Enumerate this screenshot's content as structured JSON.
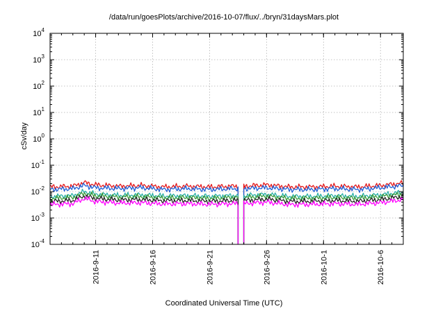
{
  "chart_data": {
    "type": "line",
    "title": "/data/run/goesPlots/archive/2016-10-07/flux/../bryn/31daysMars.plot",
    "xlabel": "Coordinated Universal Time (UTC)",
    "ylabel": "cSv/day",
    "y_scale": "log",
    "ylim": [
      0.0001,
      10000
    ],
    "xlim": [
      "2016-09-07",
      "2016-10-08"
    ],
    "grid": true,
    "legend": "none",
    "y_ticks": [
      {
        "base": "10",
        "exp": "-4"
      },
      {
        "base": "10",
        "exp": "-3"
      },
      {
        "base": "10",
        "exp": "-2"
      },
      {
        "base": "10",
        "exp": "-1"
      },
      {
        "base": "10",
        "exp": "0"
      },
      {
        "base": "10",
        "exp": "1"
      },
      {
        "base": "10",
        "exp": "2"
      },
      {
        "base": "10",
        "exp": "3"
      },
      {
        "base": "10",
        "exp": "4"
      }
    ],
    "x_ticks": [
      "2016-9-11",
      "2016-9-16",
      "2016-9-21",
      "2016-9-26",
      "2016-10-1",
      "2016-10-6"
    ],
    "data_gap": [
      "2016-09-23T12:00",
      "2016-09-24T00:00"
    ],
    "series": [
      {
        "color": "#e41a1c",
        "x": [
          "2016-09-07",
          "2016-09-09",
          "2016-09-10",
          "2016-09-11",
          "2016-09-13",
          "2016-09-15",
          "2016-09-17",
          "2016-09-19",
          "2016-09-21",
          "2016-09-23",
          "2016-09-24",
          "2016-09-26",
          "2016-09-28",
          "2016-09-30",
          "2016-10-02",
          "2016-10-04",
          "2016-10-06",
          "2016-10-08"
        ],
        "values": [
          0.015,
          0.016,
          0.022,
          0.018,
          0.016,
          0.017,
          0.015,
          0.016,
          0.015,
          0.016,
          0.016,
          0.018,
          0.015,
          0.015,
          0.016,
          0.015,
          0.017,
          0.021
        ]
      },
      {
        "color": "#1f5fd6",
        "x": [
          "2016-09-07",
          "2016-09-09",
          "2016-09-10",
          "2016-09-11",
          "2016-09-13",
          "2016-09-15",
          "2016-09-17",
          "2016-09-19",
          "2016-09-21",
          "2016-09-23",
          "2016-09-24",
          "2016-09-26",
          "2016-09-28",
          "2016-09-30",
          "2016-10-02",
          "2016-10-04",
          "2016-10-06",
          "2016-10-08"
        ],
        "values": [
          0.012,
          0.013,
          0.017,
          0.014,
          0.013,
          0.014,
          0.012,
          0.013,
          0.012,
          0.013,
          0.013,
          0.014,
          0.012,
          0.012,
          0.013,
          0.012,
          0.014,
          0.017
        ]
      },
      {
        "color": "#2ab0a8",
        "x": [
          "2016-09-07",
          "2016-09-09",
          "2016-09-10",
          "2016-09-11",
          "2016-09-13",
          "2016-09-15",
          "2016-09-17",
          "2016-09-19",
          "2016-09-21",
          "2016-09-23",
          "2016-09-24",
          "2016-09-26",
          "2016-09-28",
          "2016-09-30",
          "2016-10-02",
          "2016-10-04",
          "2016-10-06",
          "2016-10-08"
        ],
        "values": [
          0.0065,
          0.007,
          0.01,
          0.008,
          0.0072,
          0.0075,
          0.0068,
          0.007,
          0.0066,
          0.007,
          0.007,
          0.0078,
          0.0065,
          0.0066,
          0.007,
          0.0066,
          0.0075,
          0.0095
        ]
      },
      {
        "color": "#3a9a3a",
        "x": [
          "2016-09-07",
          "2016-09-09",
          "2016-09-10",
          "2016-09-11",
          "2016-09-13",
          "2016-09-15",
          "2016-09-17",
          "2016-09-19",
          "2016-09-21",
          "2016-09-23",
          "2016-09-24",
          "2016-09-26",
          "2016-09-28",
          "2016-09-30",
          "2016-10-02",
          "2016-10-04",
          "2016-10-06",
          "2016-10-08"
        ],
        "values": [
          0.0055,
          0.006,
          0.0085,
          0.007,
          0.0062,
          0.0065,
          0.0058,
          0.006,
          0.0056,
          0.006,
          0.006,
          0.0068,
          0.0055,
          0.0056,
          0.006,
          0.0056,
          0.0065,
          0.0082
        ]
      },
      {
        "color": "#222222",
        "x": [
          "2016-09-07",
          "2016-09-09",
          "2016-09-10",
          "2016-09-11",
          "2016-09-13",
          "2016-09-15",
          "2016-09-17",
          "2016-09-19",
          "2016-09-21",
          "2016-09-23",
          "2016-09-24",
          "2016-09-26",
          "2016-09-28",
          "2016-09-30",
          "2016-10-02",
          "2016-10-04",
          "2016-10-06",
          "2016-10-08"
        ],
        "values": [
          0.0042,
          0.0046,
          0.0068,
          0.0055,
          0.0048,
          0.005,
          0.0045,
          0.0046,
          0.0043,
          0.0046,
          0.0046,
          0.0052,
          0.0042,
          0.0043,
          0.0046,
          0.0043,
          0.005,
          0.0065
        ]
      },
      {
        "color": "#ff00ff",
        "x": [
          "2016-09-07",
          "2016-09-09",
          "2016-09-10",
          "2016-09-11",
          "2016-09-13",
          "2016-09-15",
          "2016-09-17",
          "2016-09-19",
          "2016-09-21",
          "2016-09-23",
          "2016-09-24",
          "2016-09-26",
          "2016-09-28",
          "2016-09-30",
          "2016-10-02",
          "2016-10-04",
          "2016-10-06",
          "2016-10-08"
        ],
        "values": [
          0.0032,
          0.0035,
          0.0055,
          0.0042,
          0.0037,
          0.0038,
          0.0034,
          0.0035,
          0.0033,
          0.0035,
          0.0035,
          0.004,
          0.0032,
          0.0033,
          0.0035,
          0.0033,
          0.0038,
          0.005
        ]
      }
    ]
  }
}
